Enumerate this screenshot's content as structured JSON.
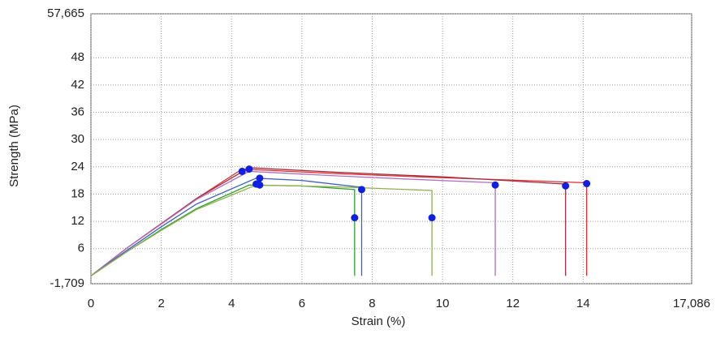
{
  "chart_data": {
    "type": "line",
    "xlabel": "Strain (%)",
    "ylabel": "Strength (MPa)",
    "xlim": [
      0,
      17.086
    ],
    "ylim": [
      -1.709,
      57.665
    ],
    "xticks": [
      0,
      2,
      4,
      6,
      8,
      10,
      12,
      14,
      {
        "value": 17.086,
        "label": "17,086"
      }
    ],
    "yticks": [
      {
        "value": -1.709,
        "label": "-1,709"
      },
      6,
      12,
      18,
      24,
      30,
      36,
      42,
      48,
      {
        "value": 57.665,
        "label": "57,665"
      }
    ],
    "grid": true,
    "series": [
      {
        "color": "#e03030",
        "x": [
          0,
          1,
          2,
          3,
          4.3,
          7,
          10,
          14.1,
          14.1
        ],
        "values": [
          0,
          6,
          11.5,
          17,
          23.5,
          22.5,
          21.6,
          20.5,
          0
        ]
      },
      {
        "color": "#a03040",
        "x": [
          0,
          1,
          2,
          3,
          4.5,
          7,
          10,
          13.5,
          13.5
        ],
        "values": [
          0,
          6,
          11.5,
          17,
          23.8,
          22.8,
          21.8,
          20.2,
          0
        ]
      },
      {
        "color": "#b070c0",
        "x": [
          0,
          1,
          2,
          3,
          4.5,
          7,
          9,
          11.5,
          11.5
        ],
        "values": [
          0,
          6,
          11.4,
          16.8,
          23,
          22,
          21.3,
          20.5,
          0
        ]
      },
      {
        "color": "#4060c0",
        "x": [
          0,
          1,
          2,
          3,
          4.7,
          6,
          7.7,
          7.7
        ],
        "values": [
          0,
          5.5,
          10.8,
          15.8,
          21.5,
          21,
          19.5,
          0
        ]
      },
      {
        "color": "#30a030",
        "x": [
          0,
          1,
          2,
          3,
          4.5,
          6,
          7.5,
          7.5
        ],
        "values": [
          0,
          5.2,
          10.2,
          14.8,
          20,
          19.8,
          19,
          0
        ]
      },
      {
        "color": "#90b050",
        "x": [
          0,
          1,
          2,
          3,
          4.7,
          7,
          9.7,
          9.7
        ],
        "values": [
          0,
          5.2,
          10,
          14.6,
          20,
          19.6,
          18.8,
          0
        ]
      }
    ],
    "markers": {
      "color": "#1020e0",
      "x": [
        4.3,
        4.5,
        4.8,
        4.8,
        4.7,
        7.5,
        7.7,
        9.7,
        11.5,
        13.5,
        14.1
      ],
      "values": [
        23,
        23.5,
        21.5,
        20,
        20.2,
        12.8,
        19,
        12.8,
        20,
        19.8,
        20.3
      ]
    }
  }
}
